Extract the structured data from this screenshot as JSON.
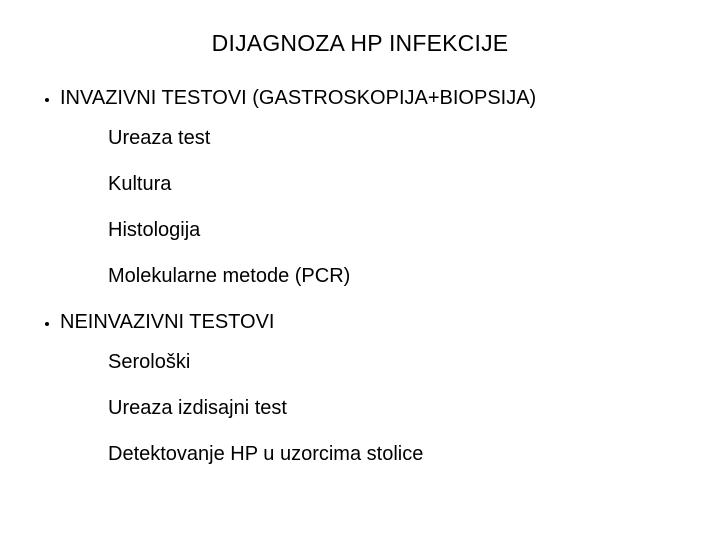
{
  "slide": {
    "title": "DIJAGNOZA HP INFEKCIJE",
    "background_color": "#ffffff",
    "text_color": "#000000",
    "title_fontsize": 23,
    "body_fontsize": 20,
    "font_family": "Verdana",
    "sections": [
      {
        "heading": "INVAZIVNI TESTOVI (GASTROSKOPIJA+BIOPSIJA)",
        "items": [
          "Ureaza test",
          "Kultura",
          "Histologija",
          "Molekularne metode (PCR)"
        ]
      },
      {
        "heading": "NEINVAZIVNI TESTOVI",
        "items": [
          "Serološki",
          "Ureaza izdisajni test",
          "Detektovanje HP u uzorcima stolice"
        ]
      }
    ]
  }
}
